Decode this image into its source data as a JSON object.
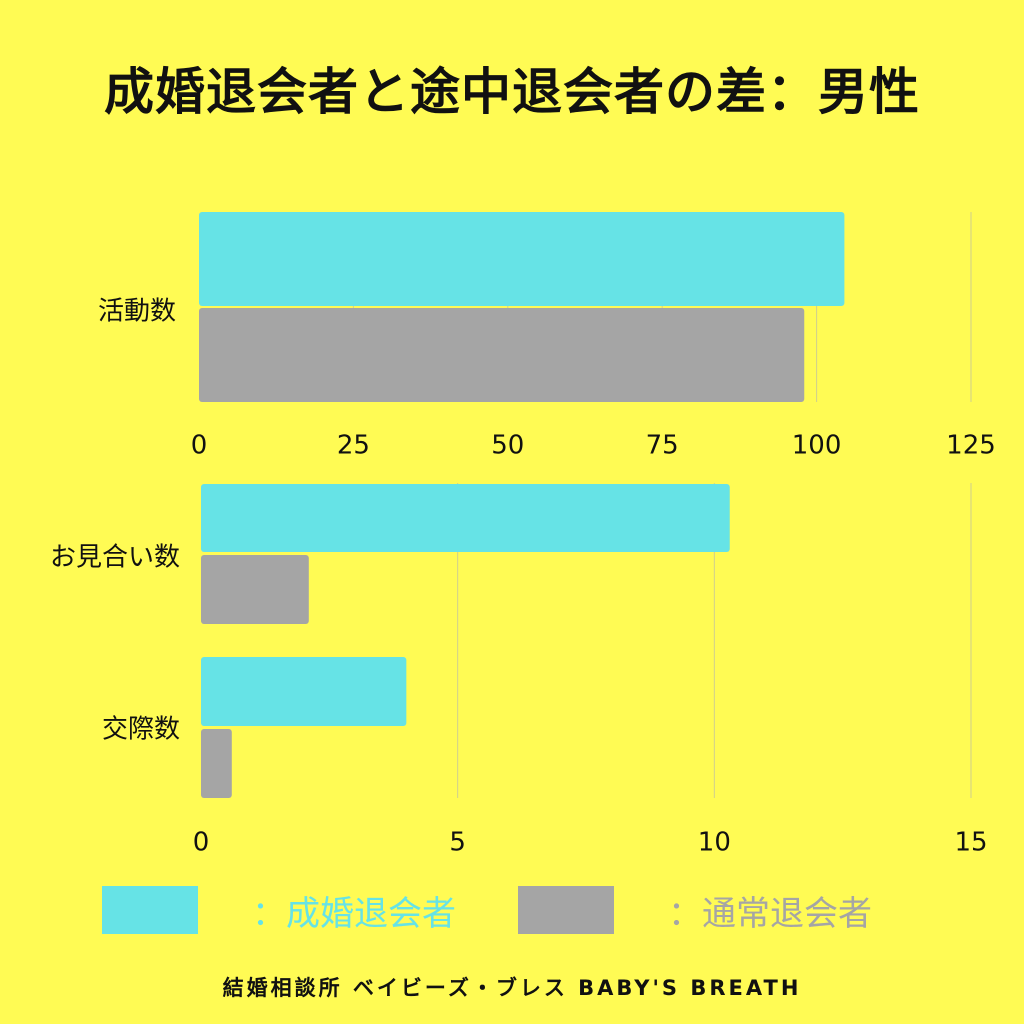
{
  "title": "成婚退会者と途中退会者の差：男性",
  "colors": {
    "background": "#FFFB54",
    "married": "#66E3E6",
    "regular": "#A5A5A5",
    "grid": "#CFCF8E"
  },
  "legend": [
    {
      "label": "：成婚退会者",
      "color": "#66E3E6"
    },
    {
      "label": "：通常退会者",
      "color": "#A5A5A5"
    }
  ],
  "footer": "結婚相談所 ベイビーズ・ブレス BABY'S BREATH",
  "chart_data": [
    {
      "type": "bar",
      "orientation": "horizontal",
      "categories": [
        "活動数"
      ],
      "series": [
        {
          "name": "成婚退会者",
          "values": [
            104.5
          ]
        },
        {
          "name": "通常退会者",
          "values": [
            98
          ]
        }
      ],
      "xlim": [
        0,
        125
      ],
      "xticks": [
        0,
        25,
        50,
        75,
        100,
        125
      ],
      "grid": true
    },
    {
      "type": "bar",
      "orientation": "horizontal",
      "categories": [
        "お見合い数",
        "交際数"
      ],
      "series": [
        {
          "name": "成婚退会者",
          "values": [
            10.3,
            4.0
          ]
        },
        {
          "name": "通常退会者",
          "values": [
            2.1,
            0.6
          ]
        }
      ],
      "xlim": [
        0,
        15
      ],
      "xticks": [
        0,
        5,
        10,
        15
      ],
      "grid": true
    }
  ]
}
